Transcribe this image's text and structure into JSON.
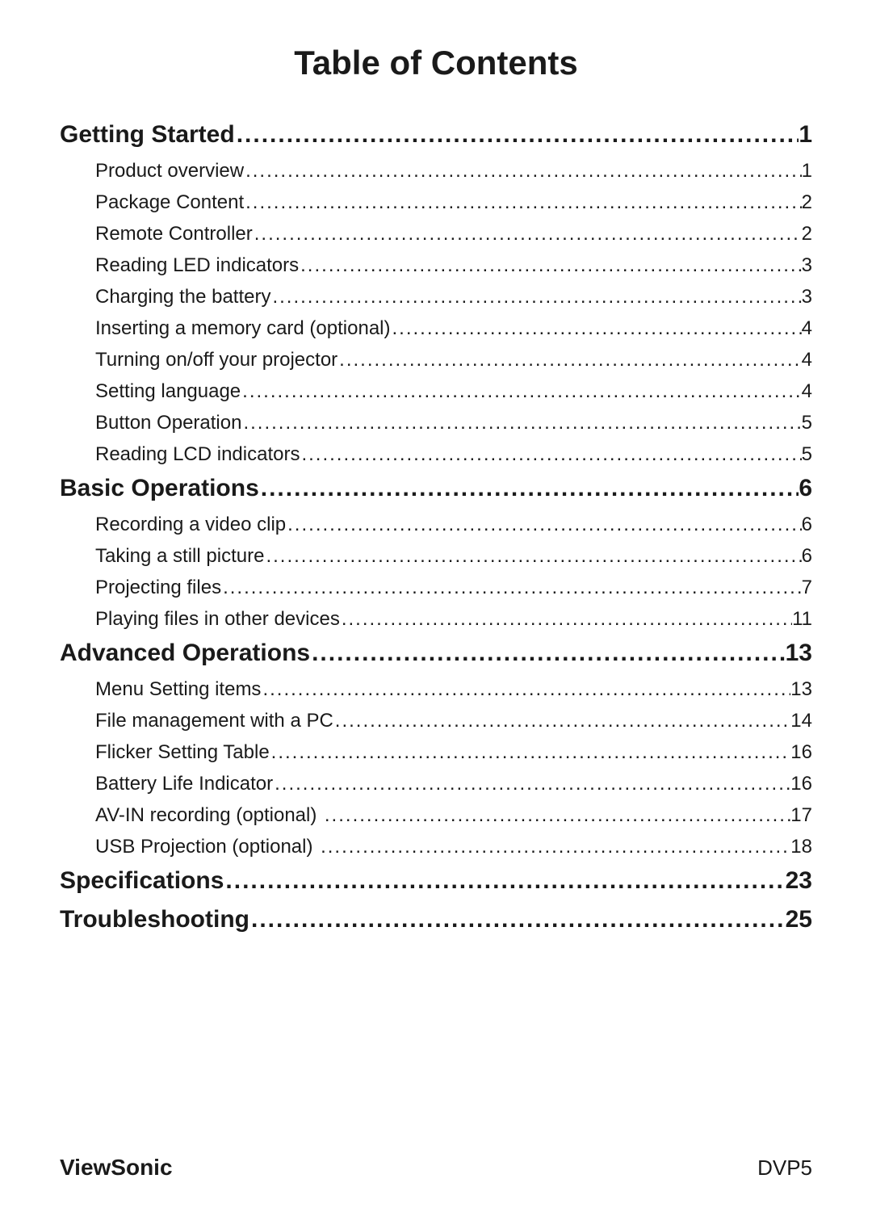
{
  "title": "Table of Contents",
  "footer": {
    "brand": "ViewSonic",
    "model": "DVP5"
  },
  "dots_fill": "..................................................................................................................................................................................................",
  "toc": [
    {
      "level": 1,
      "label": "Getting Started",
      "page": "1",
      "gap": false
    },
    {
      "level": 2,
      "label": "Product overview",
      "page": "1",
      "gap": false
    },
    {
      "level": 2,
      "label": "Package Content",
      "page": "2",
      "gap": false
    },
    {
      "level": 2,
      "label": "Remote Controller",
      "page": "2",
      "gap": false
    },
    {
      "level": 2,
      "label": "Reading LED indicators",
      "page": "3",
      "gap": false
    },
    {
      "level": 2,
      "label": "Charging the battery",
      "page": "3",
      "gap": false
    },
    {
      "level": 2,
      "label": "Inserting a memory card (optional)",
      "page": "4",
      "gap": false
    },
    {
      "level": 2,
      "label": "Turning on/off your projector",
      "page": "4",
      "gap": false
    },
    {
      "level": 2,
      "label": "Setting language",
      "page": "4",
      "gap": false
    },
    {
      "level": 2,
      "label": "Button Operation",
      "page": "5",
      "gap": false
    },
    {
      "level": 2,
      "label": "Reading LCD indicators",
      "page": "5",
      "gap": false
    },
    {
      "level": 1,
      "label": "Basic Operations",
      "page": "6",
      "gap": false
    },
    {
      "level": 2,
      "label": "Recording a video clip",
      "page": "6",
      "gap": false
    },
    {
      "level": 2,
      "label": "Taking a still picture",
      "page": "6",
      "gap": false
    },
    {
      "level": 2,
      "label": "Projecting files",
      "page": "7",
      "gap": false
    },
    {
      "level": 2,
      "label": "Playing files in other devices",
      "page": " 11",
      "gap": false
    },
    {
      "level": 1,
      "label": "Advanced Operations",
      "page": "13",
      "gap": false
    },
    {
      "level": 2,
      "label": "Menu Setting items",
      "page": "13",
      "gap": false
    },
    {
      "level": 2,
      "label": "File management with a PC",
      "page": "14",
      "gap": false
    },
    {
      "level": 2,
      "label": "Flicker Setting Table",
      "page": "16",
      "gap": false
    },
    {
      "level": 2,
      "label": "Battery Life Indicator",
      "page": "16",
      "gap": false
    },
    {
      "level": 2,
      "label": "AV-IN recording (optional)",
      "page": "17",
      "gap": true
    },
    {
      "level": 2,
      "label": "USB Projection (optional)",
      "page": "18",
      "gap": true
    },
    {
      "level": 1,
      "label": "Specifications",
      "page": "23",
      "gap": false
    },
    {
      "level": 1,
      "label": "Troubleshooting",
      "page": "25",
      "gap": false
    }
  ]
}
